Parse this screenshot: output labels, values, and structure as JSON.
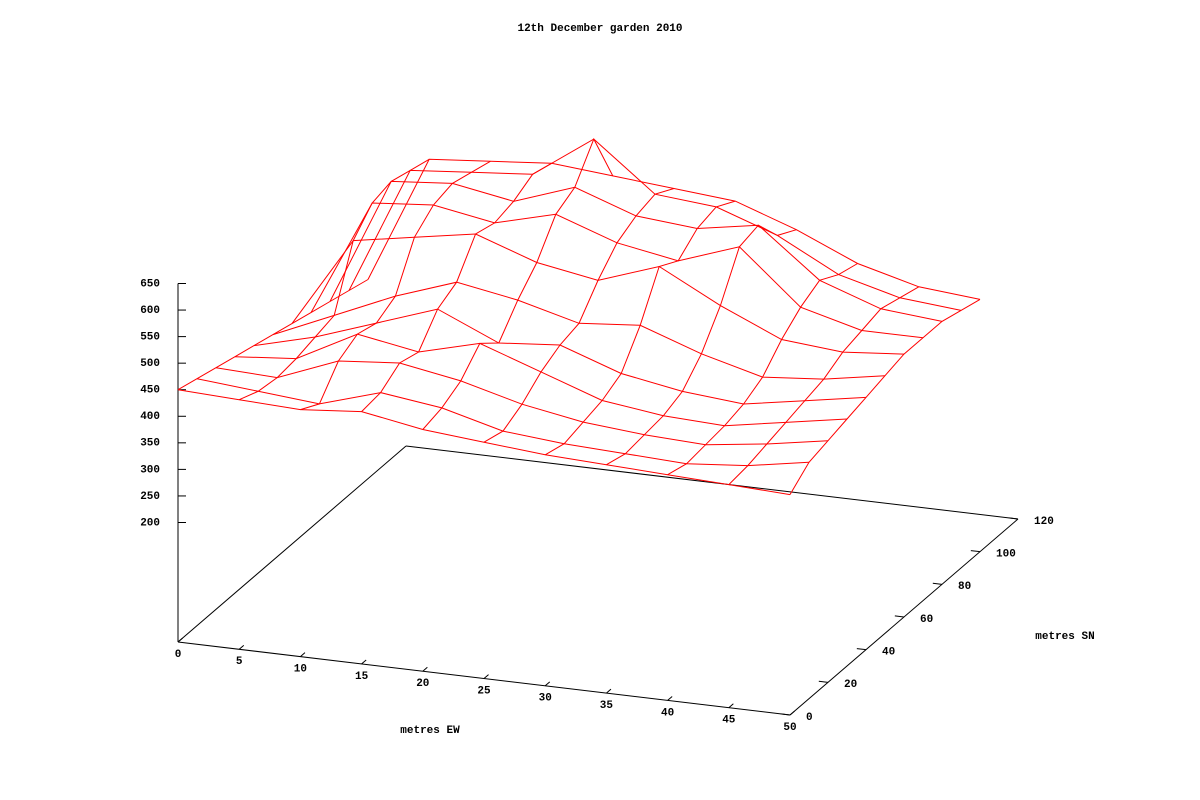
{
  "chart_data": {
    "type": "surface",
    "title": "12th December garden 2010",
    "x_label": "metres EW",
    "y_label": "metres SN",
    "x": [
      0,
      5,
      10,
      15,
      20,
      25,
      30,
      35,
      40,
      45,
      50
    ],
    "y": [
      0,
      10,
      20,
      30,
      40,
      50,
      60,
      70,
      80,
      90,
      100
    ],
    "z": [
      [
        450,
        445,
        440,
        450,
        430,
        420,
        410,
        405,
        400,
        395,
        390
      ],
      [
        440,
        430,
        420,
        455,
        440,
        410,
        400,
        395,
        390,
        400,
        420
      ],
      [
        430,
        425,
        470,
        480,
        460,
        430,
        410,
        400,
        395,
        410,
        430
      ],
      [
        420,
        430,
        490,
        470,
        500,
        460,
        420,
        405,
        400,
        420,
        440
      ],
      [
        410,
        440,
        480,
        520,
        470,
        480,
        440,
        420,
        410,
        430,
        450
      ],
      [
        400,
        450,
        500,
        540,
        520,
        490,
        500,
        460,
        430,
        440,
        460
      ],
      [
        390,
        560,
        580,
        600,
        560,
        540,
        580,
        520,
        470,
        460,
        470
      ],
      [
        380,
        600,
        610,
        590,
        620,
        580,
        560,
        600,
        500,
        470,
        470
      ],
      [
        370,
        610,
        620,
        600,
        640,
        600,
        590,
        610,
        520,
        480,
        470
      ],
      [
        360,
        600,
        610,
        620,
        700,
        610,
        600,
        560,
        500,
        470,
        460
      ],
      [
        350,
        590,
        600,
        610,
        600,
        590,
        580,
        540,
        490,
        460,
        450
      ]
    ],
    "color": "#ff0000",
    "xlim": [
      0,
      50
    ],
    "xticks": [
      0,
      5,
      10,
      15,
      20,
      25,
      30,
      35,
      40,
      45,
      50
    ],
    "ylim": [
      0,
      120
    ],
    "yticks": [
      0,
      20,
      40,
      60,
      80,
      100,
      120
    ],
    "zlim": [
      200,
      650
    ],
    "zticks": [
      200,
      250,
      300,
      350,
      400,
      450,
      500,
      550,
      600,
      650
    ],
    "ticslevel": 0.5
  }
}
